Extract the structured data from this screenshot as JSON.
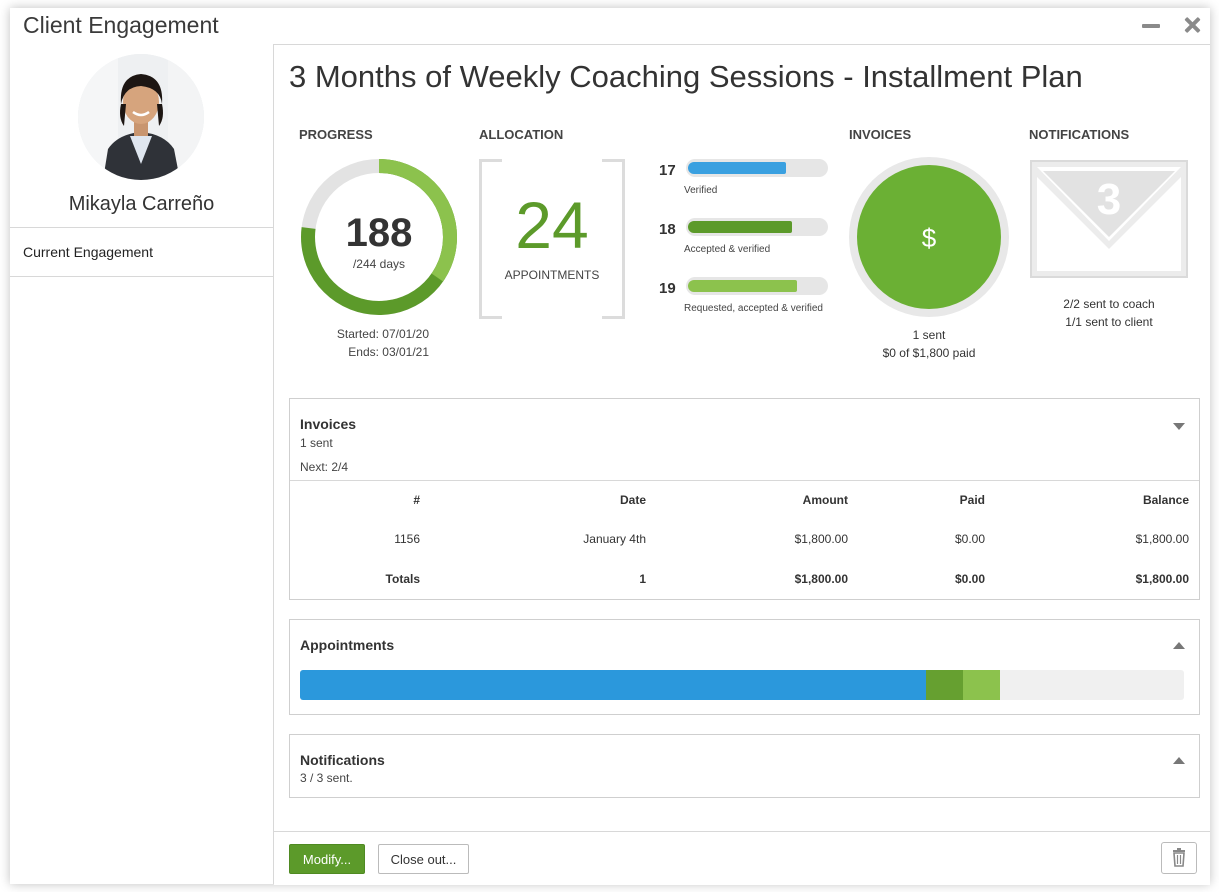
{
  "window": {
    "title": "Client Engagement"
  },
  "sidebar": {
    "client_name": "Mikayla Carreño",
    "items": [
      {
        "label": "Current Engagement"
      }
    ]
  },
  "main": {
    "title": "3 Months of Weekly Coaching Sessions - Installment Plan",
    "progress": {
      "label": "PROGRESS",
      "days_elapsed": "188",
      "days_total_label": "/244 days",
      "fraction": 0.77,
      "started": "Started: 07/01/20",
      "ends": "Ends: 03/01/21"
    },
    "allocation": {
      "label": "ALLOCATION",
      "count": "24",
      "unit": "APPOINTMENTS",
      "bars": [
        {
          "count": "17",
          "label": "Verified",
          "fraction": 0.71,
          "color": "#3aa0e0"
        },
        {
          "count": "18",
          "label": "Accepted & verified",
          "fraction": 0.75,
          "color": "#5c9a2a"
        },
        {
          "count": "19",
          "label": "Requested, accepted & verified",
          "fraction": 0.79,
          "color": "#8cc24d"
        }
      ]
    },
    "invoices_stat": {
      "label": "INVOICES",
      "symbol": "$",
      "line1": "1 sent",
      "line2": "$0 of $1,800 paid"
    },
    "notifications_stat": {
      "label": "NOTIFICATIONS",
      "count": "3",
      "line1": "2/2 sent to coach",
      "line2": "1/1 sent to client"
    }
  },
  "invoices_panel": {
    "title": "Invoices",
    "sub1": "1 sent",
    "sub2": "Next: 2/4",
    "columns": [
      "#",
      "Date",
      "Amount",
      "Paid",
      "Balance"
    ],
    "rows": [
      [
        "1156",
        "January 4th",
        "$1,800.00",
        "$0.00",
        "$1,800.00"
      ]
    ],
    "totals": [
      "Totals",
      "1",
      "$1,800.00",
      "$0.00",
      "$1,800.00"
    ]
  },
  "appointments_panel": {
    "title": "Appointments",
    "segments": [
      {
        "name": "verified",
        "fraction": 0.708,
        "color": "#2b98dc"
      },
      {
        "name": "accepted",
        "fraction": 0.042,
        "color": "#66a030"
      },
      {
        "name": "requested",
        "fraction": 0.042,
        "color": "#8cc24d"
      }
    ]
  },
  "notifications_panel": {
    "title": "Notifications",
    "sub": "3 / 3 sent."
  },
  "footer": {
    "modify_label": "Modify...",
    "closeout_label": "Close out..."
  },
  "colors": {
    "accent_green": "#5c9a2a",
    "accent_blue": "#2b98dc",
    "light_gray": "#e6e6e6"
  }
}
